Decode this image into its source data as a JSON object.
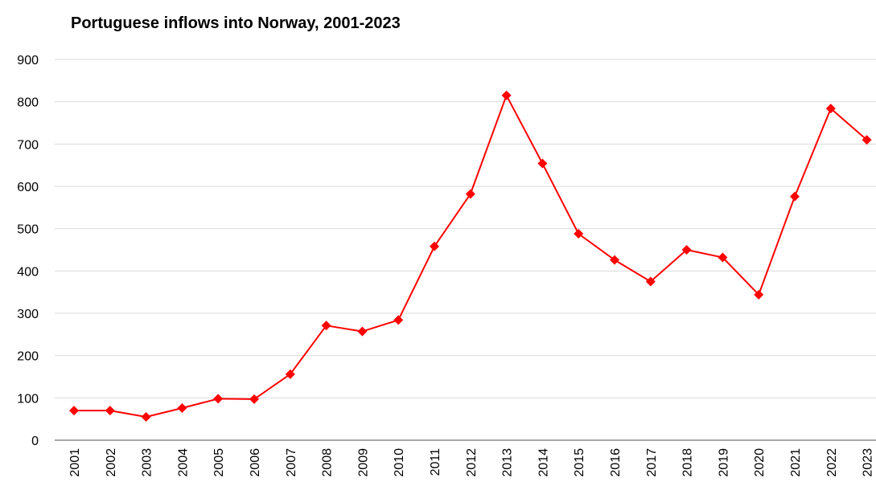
{
  "chart_data": {
    "type": "line",
    "title": "Portuguese inflows into Norway, 2001-2023",
    "xlabel": "",
    "ylabel": "",
    "ylim": [
      0,
      900
    ],
    "yticks": [
      0,
      100,
      200,
      300,
      400,
      500,
      600,
      700,
      800,
      900
    ],
    "grid": true,
    "legend": "none",
    "categories": [
      "2001",
      "2002",
      "2003",
      "2004",
      "2005",
      "2006",
      "2007",
      "2008",
      "2009",
      "2010",
      "2011",
      "2012",
      "2013",
      "2014",
      "2015",
      "2016",
      "2017",
      "2018",
      "2019",
      "2020",
      "2021",
      "2022",
      "2023"
    ],
    "series": [
      {
        "values": [
          70,
          70,
          55,
          76,
          98,
          97,
          156,
          271,
          257,
          284,
          458,
          582,
          815,
          654,
          488,
          426,
          375,
          450,
          432,
          344,
          576,
          784,
          710
        ],
        "color": "#ff0000",
        "marker": "diamond"
      }
    ],
    "colors": {
      "line": "#ff0000",
      "grid": "#d9d9d9",
      "axis": "#888888"
    }
  }
}
